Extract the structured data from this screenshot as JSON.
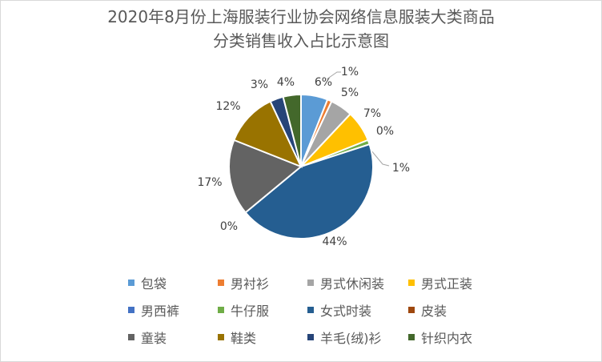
{
  "chart_data": {
    "type": "pie",
    "title": "2020年8月份上海服装行业协会网络信息服装大类商品\n分类销售收入占比示意图",
    "title_lines": [
      "2020年8月份上海服装行业协会网络信息服装大类商品",
      "分类销售收入占比示意图"
    ],
    "start_angle_deg": 0,
    "direction": "clockwise",
    "legend_position": "bottom",
    "categories": [
      "包袋",
      "男衬衫",
      "男式休闲装",
      "男式正装",
      "男西裤",
      "牛仔服",
      "女式时装",
      "皮装",
      "童装",
      "鞋类",
      "羊毛(绒)衫",
      "针织内衣"
    ],
    "values": [
      6,
      1,
      5,
      7,
      0,
      1,
      44,
      0,
      17,
      12,
      3,
      4
    ],
    "labels": [
      "6%",
      "1%",
      "5%",
      "7%",
      "0%",
      "1%",
      "44%",
      "0%",
      "17%",
      "12%",
      "3%",
      "4%"
    ],
    "colors": [
      "#5b9bd5",
      "#ed7d31",
      "#a5a5a5",
      "#ffc000",
      "#4472c4",
      "#70ad47",
      "#255e91",
      "#9e480e",
      "#636363",
      "#997300",
      "#264478",
      "#43682b"
    ]
  }
}
